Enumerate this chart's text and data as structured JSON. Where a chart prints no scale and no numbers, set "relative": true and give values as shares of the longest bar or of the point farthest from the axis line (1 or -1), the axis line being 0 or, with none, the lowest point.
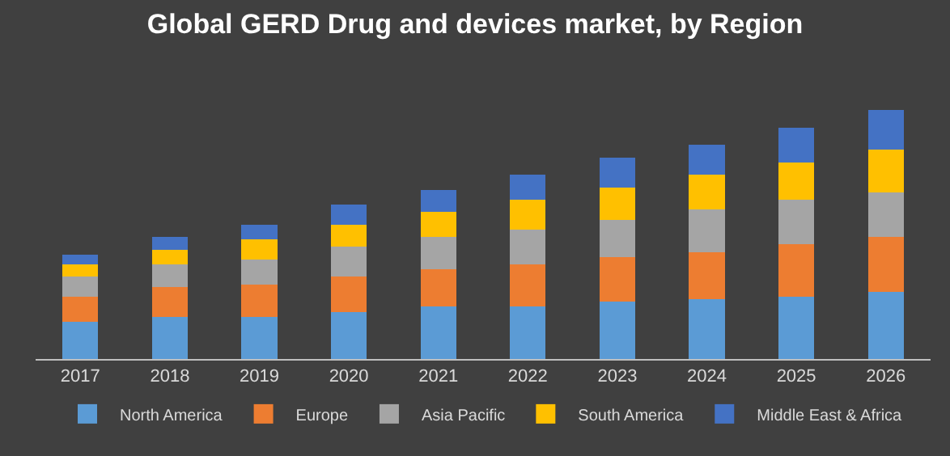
{
  "chart_data": {
    "type": "bar",
    "title": "Global GERD Drug and devices market, by Region",
    "relative": true,
    "stacked": true,
    "legend": "bottom",
    "categories": [
      "2017",
      "2018",
      "2019",
      "2020",
      "2021",
      "2022",
      "2023",
      "2024",
      "2025",
      "2026"
    ],
    "series": [
      {
        "name": "North America",
        "color": "#5b9bd5",
        "values": [
          0.15,
          0.17,
          0.17,
          0.19,
          0.21,
          0.21,
          0.23,
          0.24,
          0.25,
          0.27
        ]
      },
      {
        "name": "Europe",
        "color": "#ed7d31",
        "values": [
          0.1,
          0.12,
          0.13,
          0.14,
          0.15,
          0.17,
          0.18,
          0.19,
          0.21,
          0.22
        ]
      },
      {
        "name": "Asia Pacific",
        "color": "#a5a5a5",
        "values": [
          0.08,
          0.09,
          0.1,
          0.12,
          0.13,
          0.14,
          0.15,
          0.17,
          0.18,
          0.18
        ]
      },
      {
        "name": "South America",
        "color": "#ffc000",
        "values": [
          0.05,
          0.06,
          0.08,
          0.09,
          0.1,
          0.12,
          0.13,
          0.14,
          0.15,
          0.17
        ]
      },
      {
        "name": "Middle East & Africa",
        "color": "#4472c4",
        "values": [
          0.04,
          0.05,
          0.06,
          0.08,
          0.09,
          0.1,
          0.12,
          0.12,
          0.14,
          0.16
        ]
      }
    ]
  }
}
